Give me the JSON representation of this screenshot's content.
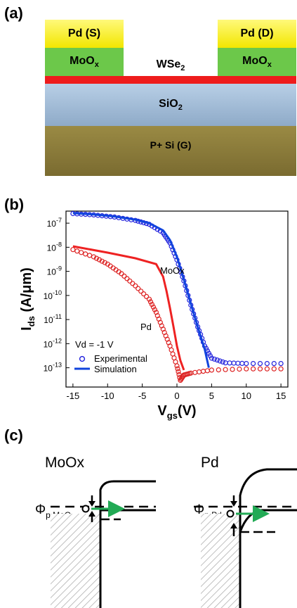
{
  "panel_a": {
    "label": "(a)",
    "source_label": "Pd (S)",
    "drain_label": "Pd (D)",
    "contact_left": "MoO",
    "contact_left_sub": "x",
    "contact_right": "MoO",
    "contact_right_sub": "x",
    "channel": "WSe",
    "channel_sub": "2",
    "oxide": "SiO",
    "oxide_sub": "2",
    "gate": "P+ Si (G)",
    "colors": {
      "pd": "#f5f000",
      "moox": "#6cc84a",
      "wse2": "#ee1c1c",
      "sio2": "#9fbcd8",
      "si": "#8a7a3c"
    }
  },
  "panel_b": {
    "label": "(b)",
    "annotation_vd": "Vd = -1 V",
    "curve_label_moox": "MoOx",
    "curve_label_pd": "Pd",
    "legend": {
      "experimental": "Experimental",
      "simulation": "Simulation"
    }
  },
  "chart_data": {
    "type": "scatter",
    "xlabel": "V",
    "xlabel_sub": "gs",
    "xlabel_unit": "(V)",
    "ylabel": "I",
    "ylabel_sub": "ds",
    "ylabel_unit": " (A/μm)",
    "xlim": [
      -16,
      16
    ],
    "ylim_log10": [
      -13.8,
      -6.5
    ],
    "yscale": "log",
    "x_ticks": [
      "-15",
      "-10",
      "-5",
      "0",
      "5",
      "10",
      "15"
    ],
    "y_ticks": [
      {
        "base": "10",
        "exp": "-7"
      },
      {
        "base": "10",
        "exp": "-8"
      },
      {
        "base": "10",
        "exp": "-9"
      },
      {
        "base": "10",
        "exp": "-10"
      },
      {
        "base": "10",
        "exp": "-11"
      },
      {
        "base": "10",
        "exp": "-12"
      },
      {
        "base": "10",
        "exp": "-13"
      }
    ],
    "series": [
      {
        "name": "MoOx experimental",
        "style": "markers",
        "color": "#2222dd",
        "x": [
          -15,
          -12,
          -9,
          -6,
          -4,
          -2,
          -1,
          0,
          1,
          2,
          3,
          4,
          5,
          7,
          10,
          15
        ],
        "y": [
          2.5e-07,
          2.2e-07,
          1.8e-07,
          1.3e-07,
          9e-08,
          4e-08,
          1.5e-08,
          3e-09,
          4e-10,
          4e-11,
          5e-12,
          8e-13,
          2.5e-13,
          1.6e-13,
          1.5e-13,
          1.5e-13
        ]
      },
      {
        "name": "MoOx simulation",
        "style": "line",
        "color": "#1144dd",
        "x": [
          -15,
          -12,
          -9,
          -6,
          -4,
          -2,
          -1,
          0,
          1,
          2,
          3,
          4,
          4.6
        ],
        "y": [
          2.6e-07,
          2.3e-07,
          1.9e-07,
          1.4e-07,
          1e-07,
          5e-08,
          2e-08,
          4e-09,
          4.5e-10,
          4.5e-11,
          5e-12,
          6e-13,
          1e-13
        ]
      },
      {
        "name": "Pd experimental",
        "style": "markers",
        "color": "#dd2222",
        "x": [
          -15,
          -12,
          -10,
          -8,
          -6,
          -4,
          -3,
          -2,
          -1,
          0,
          0.5,
          1,
          2,
          5,
          10,
          15
        ],
        "y": [
          8e-09,
          4e-09,
          2e-09,
          8e-10,
          2.5e-10,
          7e-11,
          2e-11,
          4e-12,
          8e-13,
          1.2e-13,
          3e-14,
          5e-14,
          6e-14,
          8e-14,
          9e-14,
          9e-14
        ]
      },
      {
        "name": "Pd simulation",
        "style": "line",
        "color": "#ee2222",
        "x": [
          -15,
          -10,
          -6,
          -3,
          -2,
          -1.5,
          -1,
          -0.5,
          0,
          0.5,
          1
        ],
        "y": [
          1.1e-08,
          6e-09,
          3.5e-09,
          2e-09,
          6e-10,
          1.5e-10,
          3e-11,
          5e-12,
          8e-13,
          2e-13,
          8e-14
        ]
      }
    ]
  },
  "panel_c": {
    "label": "(c)",
    "title_left": "MoOx",
    "title_right": "Pd",
    "phi_left": "Φ",
    "phi_left_sub": "p,MoO",
    "phi_left_subsub": "x",
    "phi_right": "Φ",
    "phi_right_sub": "p,Pd"
  }
}
